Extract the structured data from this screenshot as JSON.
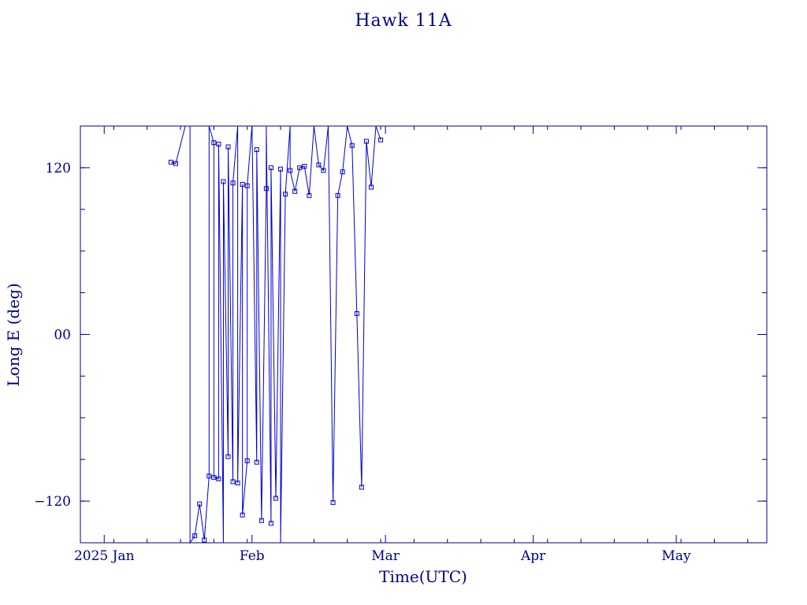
{
  "chart_data": {
    "type": "line",
    "title": "Hawk 11A",
    "xlabel": "Time(UTC)",
    "ylabel": "Long E (deg)",
    "x_range": [
      "2024-12-27",
      "2025-05-20"
    ],
    "ylim": [
      -150,
      150
    ],
    "x_ticks": [
      {
        "date": "2025-01-01",
        "label": "2025 Jan"
      },
      {
        "date": "2025-02-01",
        "label": "Feb"
      },
      {
        "date": "2025-03-01",
        "label": "Mar"
      },
      {
        "date": "2025-04-01",
        "label": "Apr"
      },
      {
        "date": "2025-05-01",
        "label": "May"
      }
    ],
    "y_ticks": [
      {
        "value": 120,
        "label": "120"
      },
      {
        "value": 0,
        "label": "00"
      },
      {
        "value": -120,
        "label": "−120"
      }
    ],
    "color": "#0000cd",
    "series": [
      {
        "points": [
          [
            "2025-01-15",
            124
          ],
          [
            "2025-01-16",
            123
          ],
          [
            "2025-01-18",
            180
          ],
          [
            "2025-01-19",
            180
          ],
          [
            "2025-01-19",
            -180
          ],
          [
            "2025-01-20",
            -145
          ],
          [
            "2025-01-21",
            -122
          ],
          [
            "2025-01-22",
            -148
          ],
          [
            "2025-01-23",
            -102
          ],
          [
            "2025-01-23",
            180
          ],
          [
            "2025-01-24",
            138
          ],
          [
            "2025-01-24",
            -103
          ],
          [
            "2025-01-25",
            -104
          ],
          [
            "2025-01-25",
            137
          ],
          [
            "2025-01-26",
            -176
          ],
          [
            "2025-01-26",
            110
          ],
          [
            "2025-01-27",
            -88
          ],
          [
            "2025-01-27",
            135
          ],
          [
            "2025-01-28",
            -106
          ],
          [
            "2025-01-28",
            109
          ],
          [
            "2025-01-29",
            156
          ],
          [
            "2025-01-29",
            -107
          ],
          [
            "2025-01-30",
            108
          ],
          [
            "2025-01-30",
            -130
          ],
          [
            "2025-01-31",
            -91
          ],
          [
            "2025-01-31",
            107
          ],
          [
            "2025-02-01",
            180
          ],
          [
            "2025-02-02",
            -92
          ],
          [
            "2025-02-02",
            133
          ],
          [
            "2025-02-03",
            -134
          ],
          [
            "2025-02-04",
            105
          ],
          [
            "2025-02-04",
            180
          ],
          [
            "2025-02-05",
            -136
          ],
          [
            "2025-02-05",
            120
          ],
          [
            "2025-02-06",
            -118
          ],
          [
            "2025-02-07",
            119
          ],
          [
            "2025-02-07",
            -153
          ],
          [
            "2025-02-08",
            101
          ],
          [
            "2025-02-09",
            180
          ],
          [
            "2025-02-09",
            118
          ],
          [
            "2025-02-10",
            103
          ],
          [
            "2025-02-11",
            120
          ],
          [
            "2025-02-12",
            121
          ],
          [
            "2025-02-13",
            100
          ],
          [
            "2025-02-14",
            180
          ],
          [
            "2025-02-15",
            122
          ],
          [
            "2025-02-16",
            118
          ],
          [
            "2025-02-17",
            180
          ],
          [
            "2025-02-18",
            -121
          ],
          [
            "2025-02-19",
            100
          ],
          [
            "2025-02-20",
            117
          ],
          [
            "2025-02-21",
            180
          ],
          [
            "2025-02-22",
            136
          ],
          [
            "2025-02-23",
            15
          ],
          [
            "2025-02-24",
            -110
          ],
          [
            "2025-02-25",
            139
          ],
          [
            "2025-02-26",
            106
          ],
          [
            "2025-02-27",
            180
          ],
          [
            "2025-02-28",
            140
          ]
        ]
      }
    ],
    "markers": true,
    "grid": false
  }
}
